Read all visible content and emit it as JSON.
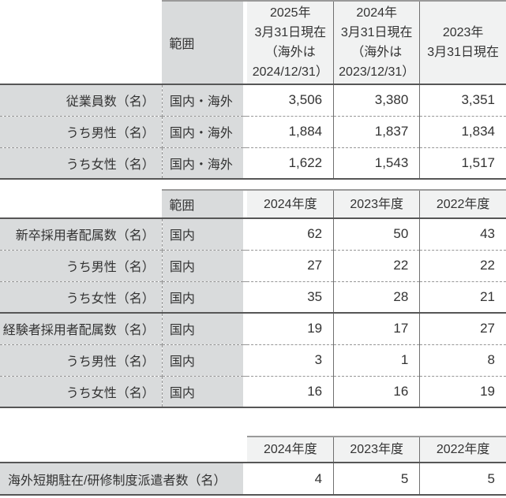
{
  "colors": {
    "cell_gray": "#d9dbdc",
    "header_light_gray": "#f1f2f2",
    "heavy_border": "#565656",
    "header_top_border": "#9a9a9a",
    "dashed_border": "#979797",
    "text": "#333333"
  },
  "employees_table": {
    "scope_header": "範囲",
    "col_headers": [
      "2025年\n3月31日現在\n（海外は\n2024/12/31）",
      "2024年\n3月31日現在\n（海外は\n2023/12/31）",
      "2023年\n3月31日現在"
    ],
    "rows": [
      {
        "label": "従業員数（名）",
        "scope": "国内・海外",
        "values": [
          "3,506",
          "3,380",
          "3,351"
        ]
      },
      {
        "label": "うち男性（名）",
        "scope": "国内・海外",
        "values": [
          "1,884",
          "1,837",
          "1,834"
        ]
      },
      {
        "label": "うち女性（名）",
        "scope": "国内・海外",
        "values": [
          "1,622",
          "1,543",
          "1,517"
        ]
      }
    ]
  },
  "hiring_table": {
    "scope_header": "範囲",
    "col_headers": [
      "2024年度",
      "2023年度",
      "2022年度"
    ],
    "rows": [
      {
        "label": "新卒採用者配属数（名）",
        "scope": "国内",
        "values": [
          "62",
          "50",
          "43"
        ]
      },
      {
        "label": "うち男性（名）",
        "scope": "国内",
        "values": [
          "27",
          "22",
          "22"
        ]
      },
      {
        "label": "うち女性（名）",
        "scope": "国内",
        "values": [
          "35",
          "28",
          "21"
        ]
      },
      {
        "label": "経験者採用者配属数（名）",
        "scope": "国内",
        "values": [
          "19",
          "17",
          "27"
        ]
      },
      {
        "label": "うち男性（名）",
        "scope": "国内",
        "values": [
          "3",
          "1",
          "8"
        ]
      },
      {
        "label": "うち女性（名）",
        "scope": "国内",
        "values": [
          "16",
          "16",
          "19"
        ]
      }
    ]
  },
  "overseas_table": {
    "col_headers": [
      "2024年度",
      "2023年度",
      "2022年度"
    ],
    "rows": [
      {
        "label": "海外短期駐在/研修制度派遣者数（名）",
        "values": [
          "4",
          "5",
          "5"
        ]
      }
    ]
  }
}
